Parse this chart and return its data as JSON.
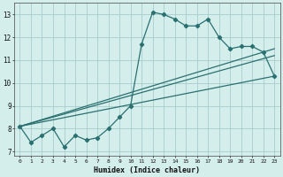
{
  "xlabel": "Humidex (Indice chaleur)",
  "bg_color": "#d4eeec",
  "grid_color": "#aacccc",
  "line_color": "#2a7070",
  "x_ticks": [
    0,
    1,
    2,
    3,
    4,
    5,
    6,
    7,
    8,
    9,
    10,
    11,
    12,
    13,
    14,
    15,
    16,
    17,
    18,
    19,
    20,
    21,
    22,
    23
  ],
  "y_ticks": [
    7,
    8,
    9,
    10,
    11,
    12,
    13
  ],
  "ylim": [
    6.8,
    13.5
  ],
  "xlim": [
    -0.5,
    23.5
  ],
  "series1_x": [
    0,
    1,
    2,
    3,
    4,
    5,
    6,
    7,
    8,
    9,
    10,
    11,
    12,
    13,
    14,
    15,
    16,
    17,
    18,
    19,
    20,
    21,
    22,
    23
  ],
  "series1_y": [
    8.1,
    7.4,
    7.7,
    8.0,
    7.2,
    7.7,
    7.5,
    7.6,
    8.0,
    8.5,
    9.0,
    11.7,
    13.1,
    13.0,
    12.8,
    12.5,
    12.5,
    12.8,
    12.0,
    11.5,
    11.6,
    11.6,
    11.35,
    10.3
  ],
  "diag_lines": [
    {
      "x": [
        0,
        23
      ],
      "y": [
        8.1,
        10.3
      ]
    },
    {
      "x": [
        0,
        23
      ],
      "y": [
        8.1,
        11.5
      ]
    },
    {
      "x": [
        0,
        23
      ],
      "y": [
        8.1,
        11.2
      ]
    }
  ]
}
